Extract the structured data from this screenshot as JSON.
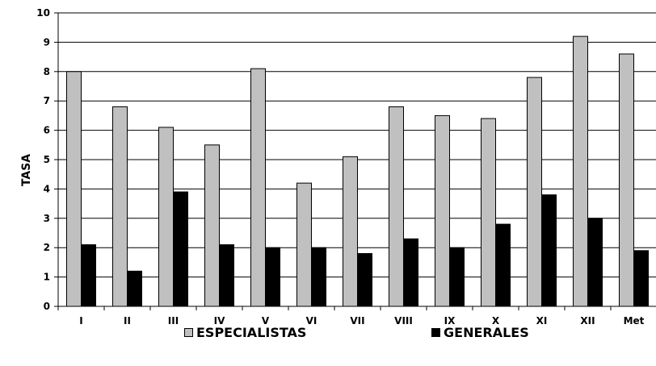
{
  "chart_data": {
    "type": "bar",
    "categories": [
      "I",
      "II",
      "III",
      "IV",
      "V",
      "VI",
      "VII",
      "VIII",
      "IX",
      "X",
      "XI",
      "XII",
      "Met"
    ],
    "series": [
      {
        "name": "ESPECIALISTAS",
        "color": "#c0c0c0",
        "values": [
          8.0,
          6.8,
          6.1,
          5.5,
          8.1,
          4.2,
          5.1,
          6.8,
          6.5,
          6.4,
          7.8,
          9.2,
          8.6
        ]
      },
      {
        "name": "GENERALES",
        "color": "#000000",
        "values": [
          2.1,
          1.2,
          3.9,
          2.1,
          2.0,
          2.0,
          1.8,
          2.3,
          2.0,
          2.8,
          3.8,
          3.0,
          1.9
        ]
      }
    ],
    "ylabel": "TASA",
    "xlabel": "",
    "title": "",
    "ylim": [
      0,
      10
    ],
    "yticks": [
      0,
      1,
      2,
      3,
      4,
      5,
      6,
      7,
      8,
      9,
      10
    ],
    "grid": true,
    "legend_position": "bottom"
  }
}
